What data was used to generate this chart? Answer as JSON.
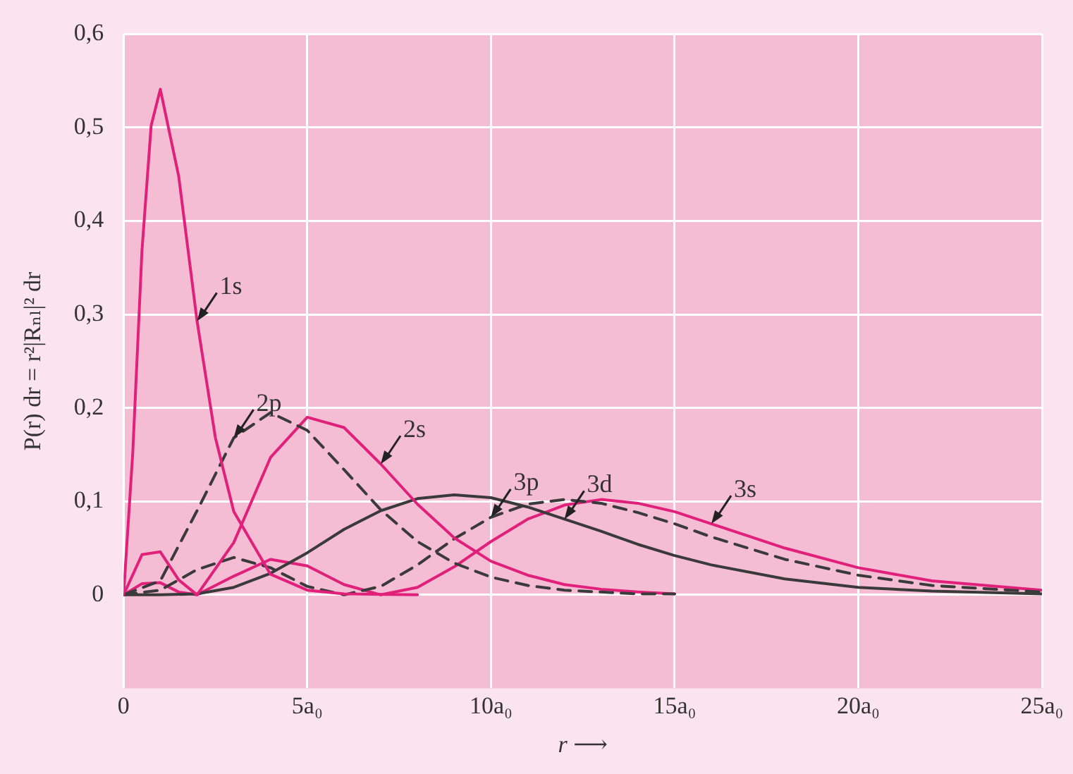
{
  "chart_data": {
    "type": "line",
    "xlabel": "r ⟶",
    "ylabel": "P(r) dr = r²|Rₙₗ|² dr",
    "xlim": [
      0,
      25
    ],
    "xticks": [
      0,
      {
        "value": 5,
        "label": "5a₀"
      },
      {
        "value": 10,
        "label": "10a₀"
      },
      {
        "value": 15,
        "label": "15a₀"
      },
      {
        "value": 20,
        "label": "20a₀"
      },
      {
        "value": 25,
        "label": "25a₀"
      }
    ],
    "ylim": [
      -0.1,
      0.6
    ],
    "yticks": [
      0,
      {
        "value": 0.1,
        "label": "0,1"
      },
      {
        "value": 0.2,
        "label": "0,2"
      },
      {
        "value": 0.3,
        "label": "0,3"
      },
      {
        "value": 0.4,
        "label": "0,4"
      },
      {
        "value": 0.5,
        "label": "0,5"
      },
      {
        "value": 0.6,
        "label": "0,6"
      }
    ],
    "grid": true,
    "legend": false,
    "marker": "none",
    "series": [
      {
        "name": "1s",
        "color": "#e0207a",
        "line_style": "solid",
        "x": [
          0,
          0.25,
          0.5,
          0.75,
          1,
          1.5,
          2,
          2.5,
          3,
          4,
          5,
          6,
          8
        ],
        "values": [
          0,
          0.152,
          0.368,
          0.502,
          0.541,
          0.448,
          0.293,
          0.168,
          0.089,
          0.022,
          0.005,
          0.001,
          0
        ]
      },
      {
        "name": "2p",
        "color": "#3a3a3a",
        "line_style": "dashed",
        "x": [
          0,
          1,
          2,
          3,
          4,
          5,
          6,
          7,
          8,
          9,
          10,
          11,
          12,
          13,
          14,
          15
        ],
        "values": [
          0,
          0.015,
          0.09,
          0.168,
          0.195,
          0.176,
          0.134,
          0.091,
          0.057,
          0.034,
          0.019,
          0.01,
          0.005,
          0.003,
          0.001,
          0.001
        ]
      },
      {
        "name": "2s",
        "color": "#e0207a",
        "line_style": "solid",
        "x": [
          0,
          0.5,
          1,
          1.5,
          2,
          3,
          4,
          5,
          6,
          7,
          8,
          9,
          10,
          11,
          12,
          13,
          14,
          15
        ],
        "values": [
          0,
          0.043,
          0.046,
          0.016,
          0,
          0.056,
          0.147,
          0.19,
          0.179,
          0.14,
          0.097,
          0.061,
          0.036,
          0.021,
          0.011,
          0.006,
          0.003,
          0.001
        ]
      },
      {
        "name": "3d",
        "color": "#3a3a3a",
        "line_style": "solid",
        "x": [
          0,
          1,
          2,
          3,
          4,
          5,
          6,
          7,
          8,
          9,
          10,
          11,
          12,
          13,
          14,
          15,
          16,
          18,
          20,
          22,
          25
        ],
        "values": [
          0,
          0,
          0.001,
          0.008,
          0.023,
          0.045,
          0.07,
          0.09,
          0.103,
          0.107,
          0.104,
          0.094,
          0.081,
          0.068,
          0.054,
          0.042,
          0.032,
          0.017,
          0.008,
          0.004,
          0.001
        ]
      },
      {
        "name": "3p",
        "color": "#3a3a3a",
        "line_style": "dashed",
        "x": [
          0,
          1,
          2,
          3,
          4,
          5,
          6,
          7,
          8,
          9,
          10,
          11,
          12,
          13,
          14,
          15,
          16,
          18,
          20,
          22,
          25
        ],
        "values": [
          0,
          0.005,
          0.027,
          0.04,
          0.029,
          0.009,
          0,
          0.009,
          0.032,
          0.06,
          0.083,
          0.097,
          0.102,
          0.098,
          0.088,
          0.076,
          0.062,
          0.038,
          0.021,
          0.01,
          0.003
        ]
      },
      {
        "name": "3s",
        "color": "#e0207a",
        "line_style": "solid",
        "x": [
          0,
          0.5,
          1,
          1.5,
          2,
          3,
          4,
          5,
          6,
          7,
          8,
          9,
          10,
          11,
          12,
          13,
          14,
          15,
          16,
          18,
          20,
          22,
          25
        ],
        "values": [
          0,
          0.012,
          0.013,
          0.003,
          0,
          0.02,
          0.038,
          0.031,
          0.011,
          0,
          0.008,
          0.03,
          0.057,
          0.081,
          0.096,
          0.102,
          0.098,
          0.089,
          0.076,
          0.05,
          0.029,
          0.015,
          0.005
        ]
      }
    ]
  }
}
